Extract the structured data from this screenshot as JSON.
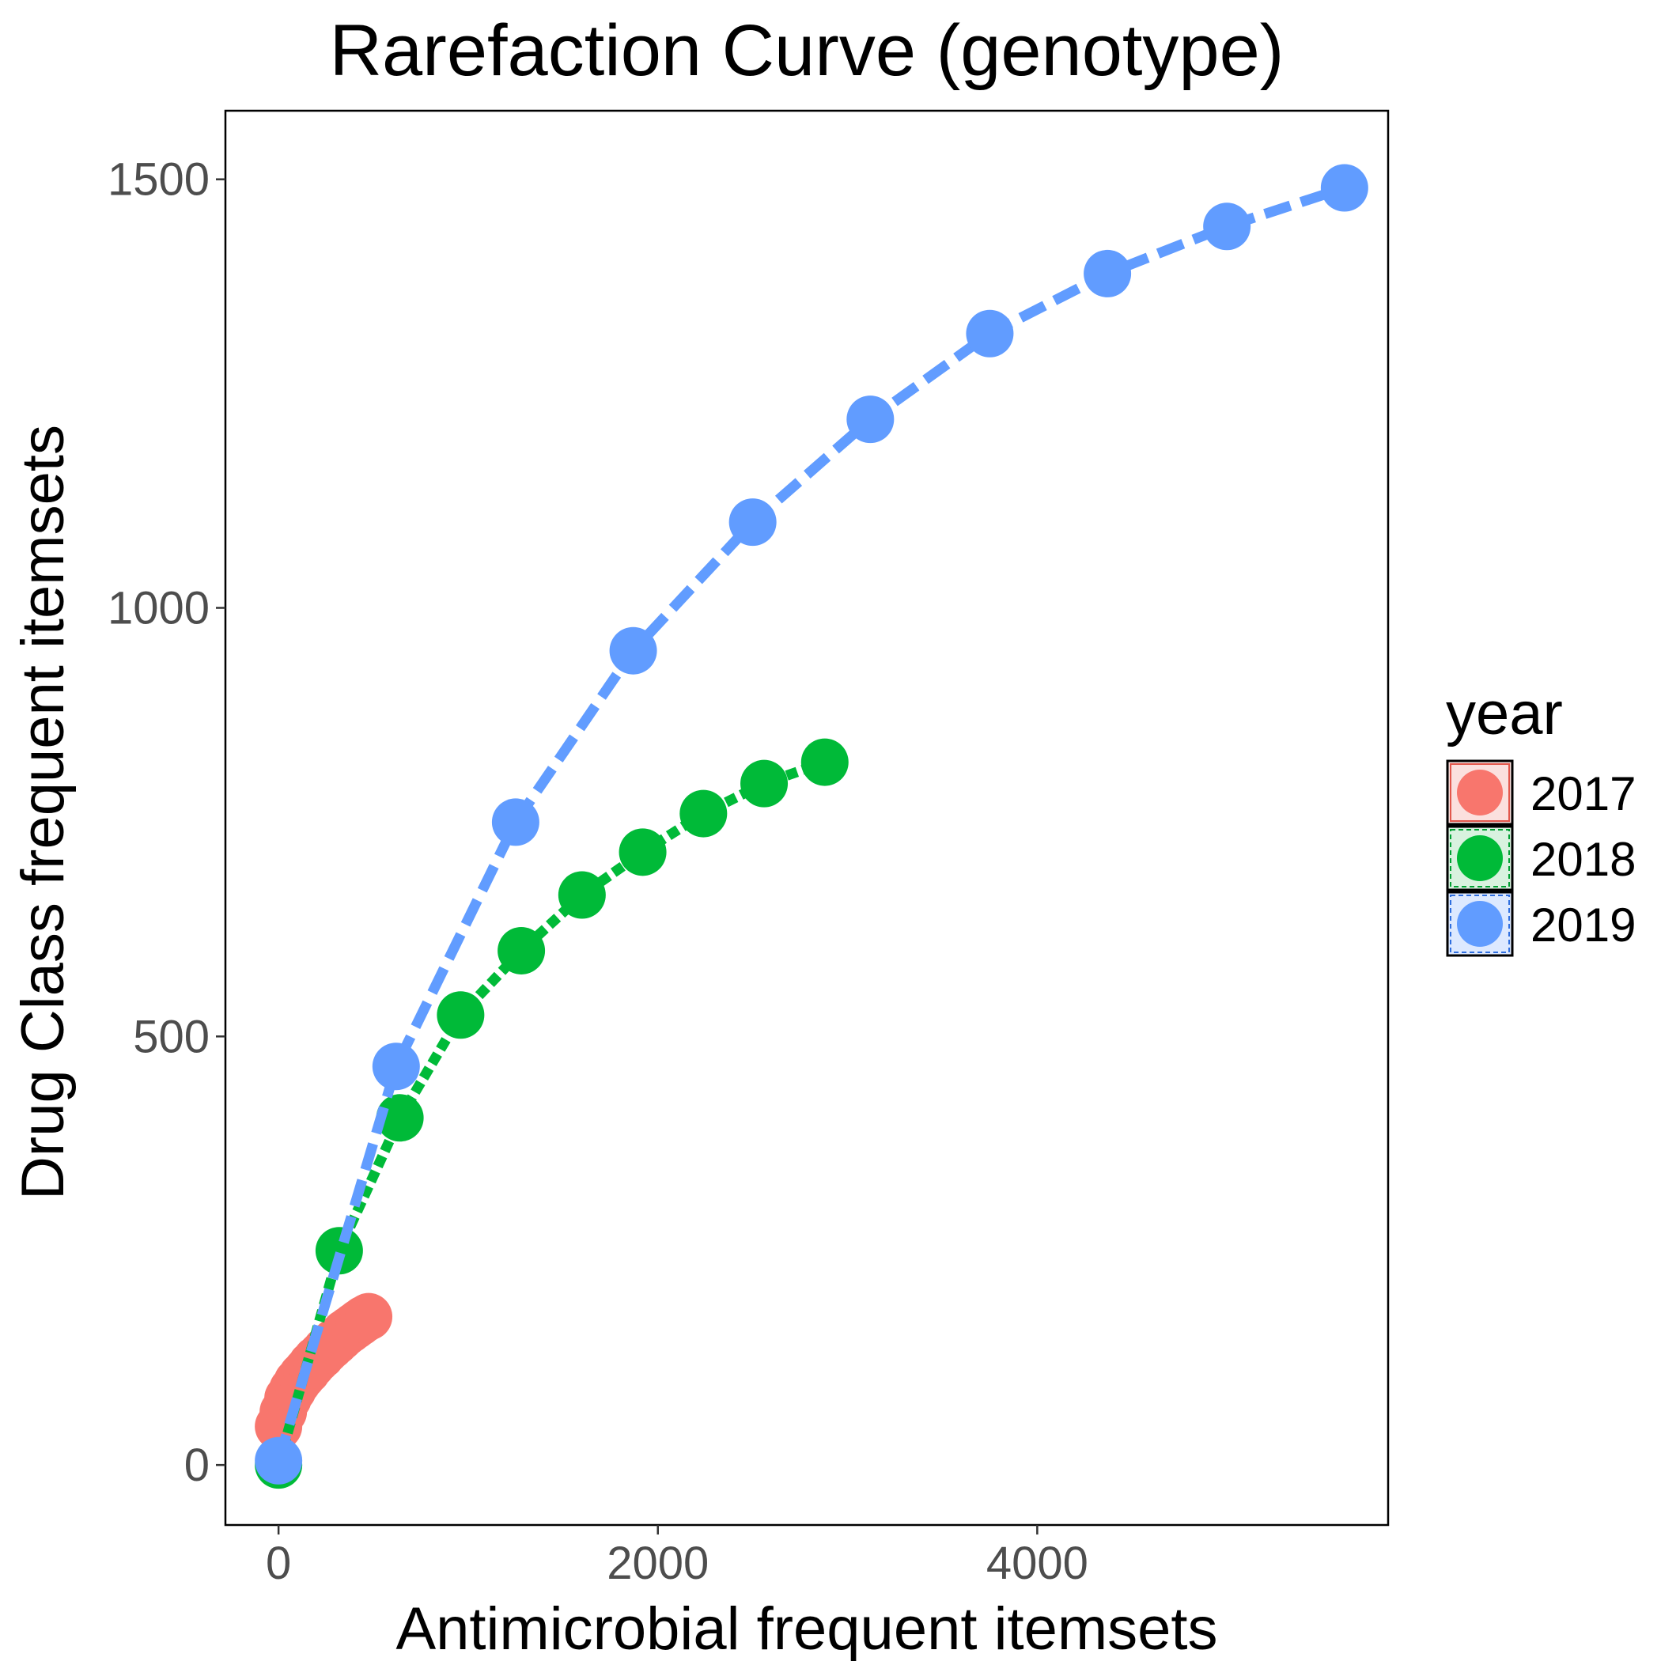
{
  "chart_data": {
    "type": "line",
    "title": "Rarefaction Curve (genotype)",
    "xlabel": "Antimicrobial frequent itemsets",
    "ylabel": "Drug Class frequent itemsets",
    "xlim": [
      -280,
      5850
    ],
    "ylim": [
      -70,
      1580
    ],
    "x_ticks": [
      0,
      2000,
      4000
    ],
    "x_tick_labels": [
      "0",
      "2000",
      "4000"
    ],
    "y_ticks": [
      0,
      500,
      1000,
      1500
    ],
    "y_tick_labels": [
      "0",
      "500",
      "1000",
      "1500"
    ],
    "grid": false,
    "legend": {
      "title": "year",
      "position": "right"
    },
    "series": [
      {
        "name": "2017",
        "color": "#F8766D",
        "line_style": "solid",
        "x": [
          0,
          25,
          50,
          75,
          100,
          125,
          150,
          175,
          200,
          225,
          250,
          275,
          300,
          325,
          350,
          375,
          400,
          425,
          450,
          475
        ],
        "y": [
          45,
          62,
          78,
          88,
          97,
          104,
          110,
          117,
          123,
          128,
          134,
          139,
          144,
          149,
          154,
          158,
          162,
          166,
          170,
          173
        ]
      },
      {
        "name": "2018",
        "color": "#00BA38",
        "line_style": "dotted",
        "x": [
          0,
          320,
          640,
          960,
          1280,
          1600,
          1920,
          2240,
          2560,
          2880
        ],
        "y": [
          0,
          250,
          405,
          525,
          600,
          665,
          715,
          760,
          795,
          820
        ]
      },
      {
        "name": "2019",
        "color": "#619CFF",
        "line_style": "dashed",
        "x": [
          0,
          620,
          1250,
          1870,
          2500,
          3120,
          3750,
          4370,
          5000,
          5620
        ],
        "y": [
          5,
          465,
          750,
          950,
          1100,
          1220,
          1320,
          1390,
          1445,
          1490
        ]
      }
    ]
  }
}
